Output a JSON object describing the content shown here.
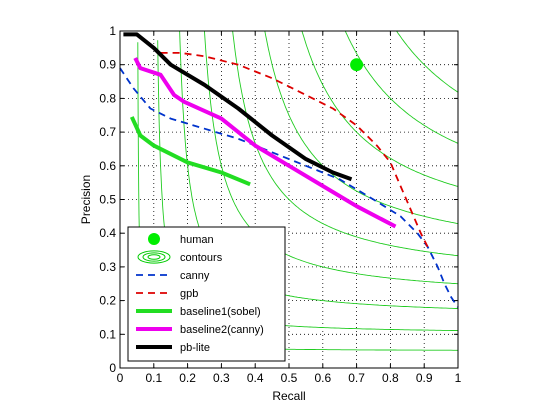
{
  "chart_data": {
    "type": "line",
    "xlabel": "Recall",
    "ylabel": "Precision",
    "xlim": [
      0,
      1
    ],
    "ylim": [
      0,
      1
    ],
    "xticks": [
      "0",
      "0.1",
      "0.2",
      "0.3",
      "0.4",
      "0.5",
      "0.6",
      "0.7",
      "0.8",
      "0.9",
      "1"
    ],
    "yticks": [
      "0",
      "0.1",
      "0.2",
      "0.3",
      "0.4",
      "0.5",
      "0.6",
      "0.7",
      "0.8",
      "0.9",
      "1"
    ],
    "grid": true,
    "legend_position": "bottom-left",
    "contour_levels": [
      0.1,
      0.2,
      0.3,
      0.4,
      0.5,
      0.6,
      0.7,
      0.8,
      0.9
    ],
    "series": [
      {
        "name": "human",
        "style": "marker",
        "color": "#00ee00",
        "x": [
          0.7
        ],
        "y": [
          0.9
        ]
      },
      {
        "name": "contours",
        "style": "contour-legend",
        "color": "#00cc00",
        "x": [],
        "y": []
      },
      {
        "name": "canny",
        "style": "dashed",
        "color": "#0033cc",
        "x": [
          0.0,
          0.04,
          0.09,
          0.15,
          0.25,
          0.35,
          0.45,
          0.55,
          0.65,
          0.75,
          0.83,
          0.88,
          0.91,
          0.94,
          0.96,
          0.98,
          1.0
        ],
        "y": [
          0.89,
          0.83,
          0.77,
          0.74,
          0.71,
          0.68,
          0.64,
          0.6,
          0.56,
          0.5,
          0.45,
          0.4,
          0.36,
          0.3,
          0.25,
          0.21,
          0.18
        ]
      },
      {
        "name": "gpb",
        "style": "dashed",
        "color": "#dd0000",
        "x": [
          0.12,
          0.18,
          0.25,
          0.35,
          0.45,
          0.55,
          0.63,
          0.7,
          0.76,
          0.8,
          0.83,
          0.86,
          0.89,
          0.91
        ],
        "y": [
          0.935,
          0.935,
          0.925,
          0.9,
          0.86,
          0.81,
          0.77,
          0.72,
          0.66,
          0.61,
          0.54,
          0.47,
          0.4,
          0.36
        ]
      },
      {
        "name": "baseline1(sobel)",
        "style": "solid",
        "color": "#22dd22",
        "x": [
          0.035,
          0.06,
          0.1,
          0.2,
          0.3,
          0.385
        ],
        "y": [
          0.745,
          0.69,
          0.66,
          0.61,
          0.58,
          0.545
        ]
      },
      {
        "name": "baseline2(canny)",
        "style": "solid",
        "color": "#ee00ee",
        "x": [
          0.045,
          0.06,
          0.12,
          0.16,
          0.19,
          0.3,
          0.4,
          0.5,
          0.6,
          0.7,
          0.815
        ],
        "y": [
          0.92,
          0.89,
          0.87,
          0.81,
          0.79,
          0.74,
          0.66,
          0.6,
          0.54,
          0.48,
          0.42
        ]
      },
      {
        "name": "pb-lite",
        "style": "solid",
        "color": "#000000",
        "x": [
          0.01,
          0.05,
          0.1,
          0.15,
          0.25,
          0.35,
          0.45,
          0.55,
          0.63,
          0.685
        ],
        "y": [
          0.99,
          0.99,
          0.95,
          0.9,
          0.84,
          0.77,
          0.69,
          0.62,
          0.58,
          0.56
        ]
      }
    ]
  }
}
